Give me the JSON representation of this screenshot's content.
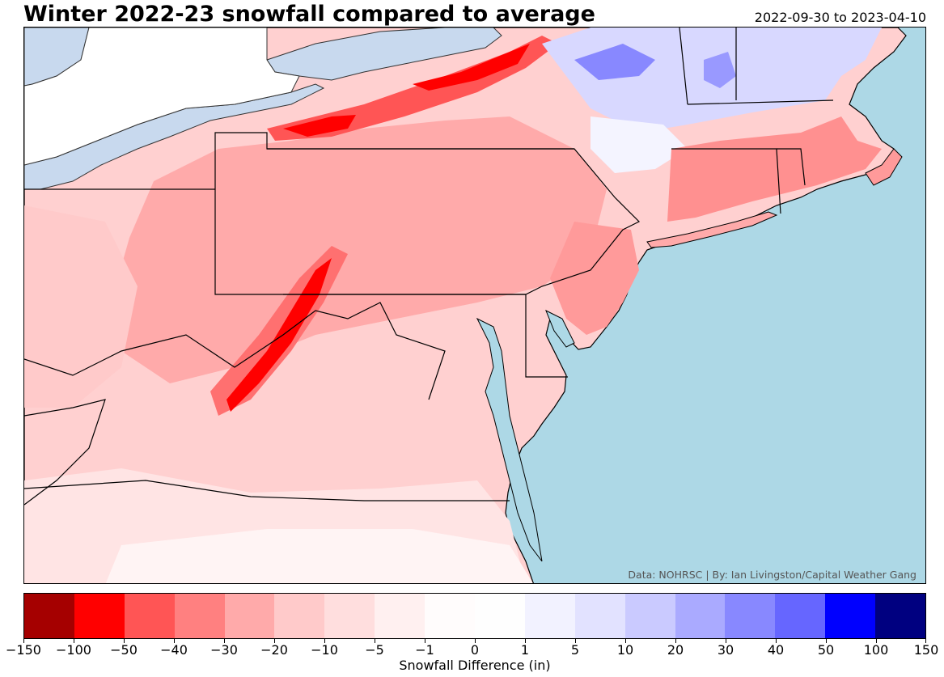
{
  "title": "Winter 2022-23 snowfall compared to average",
  "date_range": "2022-09-30 to 2023-04-10",
  "credit": "Data: NOHRSC | By: Ian Livingston/Capital Weather Gang",
  "colorbar": {
    "label": "Snowfall Difference (in)",
    "ticks": [
      "−150",
      "−100",
      "−50",
      "−40",
      "−30",
      "−20",
      "−10",
      "−5",
      "−1",
      "0",
      "1",
      "5",
      "10",
      "20",
      "30",
      "40",
      "50",
      "100",
      "150"
    ],
    "colors": [
      "#a50000",
      "#ff0000",
      "#ff5555",
      "#ff8080",
      "#ffaaaa",
      "#ffcaca",
      "#ffdede",
      "#fff0f0",
      "#fffcfc",
      "#fefefe",
      "#f2f2ff",
      "#e2e2ff",
      "#cacaff",
      "#aaaaff",
      "#8888ff",
      "#6666ff",
      "#0000ff",
      "#000080"
    ]
  },
  "map": {
    "ocean_color": "#add8e6",
    "lake_color": "#c8d9ee",
    "land_base_color": "#ffd6d6"
  }
}
